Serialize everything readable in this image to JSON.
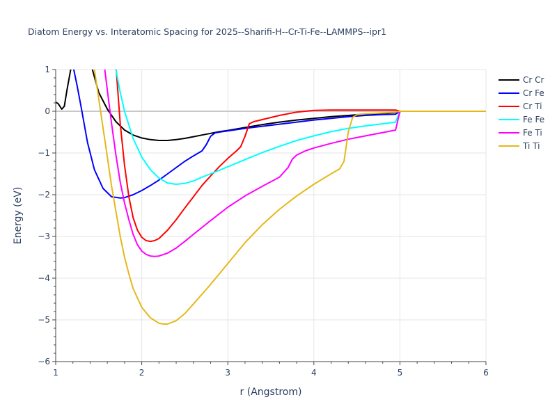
{
  "chart_data": {
    "type": "line",
    "title": "Diatom Energy vs. Interatomic Spacing for 2025--Sharifi-H--Cr-Ti-Fe--LAMMPS--ipr1",
    "xlabel": "r (Angstrom)",
    "ylabel": "Energy (eV)",
    "xlim": [
      1,
      6
    ],
    "ylim": [
      -6,
      1
    ],
    "xticks": [
      1,
      2,
      3,
      4,
      5,
      6
    ],
    "yticks": [
      1,
      0,
      -1,
      -2,
      -3,
      -4,
      -5,
      -6
    ],
    "xtick_labels": [
      "1",
      "2",
      "3",
      "4",
      "5",
      "6"
    ],
    "ytick_labels": [
      "1",
      "0",
      "−1",
      "−2",
      "−3",
      "−4",
      "−5",
      "−6"
    ],
    "grid": true,
    "legend_position": "right",
    "series": [
      {
        "name": "Cr Cr",
        "color": "#000000",
        "x": [
          1.0,
          1.03,
          1.07,
          1.1,
          1.13,
          1.17,
          1.2,
          1.3,
          1.4,
          1.5,
          1.6,
          1.7,
          1.8,
          1.9,
          2.0,
          2.1,
          2.2,
          2.3,
          2.4,
          2.5,
          2.6,
          2.7,
          2.8,
          2.9,
          3.0,
          3.2,
          3.4,
          3.6,
          3.8,
          4.0,
          4.2,
          4.4,
          4.6,
          4.8,
          5.0
        ],
        "y": [
          0.22,
          0.18,
          0.05,
          0.12,
          0.5,
          0.95,
          1.3,
          1.6,
          1.2,
          0.45,
          0.05,
          -0.25,
          -0.45,
          -0.57,
          -0.64,
          -0.68,
          -0.7,
          -0.7,
          -0.68,
          -0.65,
          -0.61,
          -0.57,
          -0.53,
          -0.49,
          -0.46,
          -0.39,
          -0.32,
          -0.26,
          -0.21,
          -0.17,
          -0.13,
          -0.1,
          -0.07,
          -0.05,
          -0.02
        ]
      },
      {
        "name": "Cr Fe",
        "color": "#0000ff",
        "x": [
          1.2,
          1.25,
          1.3,
          1.37,
          1.45,
          1.55,
          1.65,
          1.75,
          1.8,
          1.9,
          2.0,
          2.1,
          2.2,
          2.3,
          2.4,
          2.5,
          2.6,
          2.7,
          2.75,
          2.8,
          2.85,
          2.9,
          3.0,
          3.2,
          3.4,
          3.6,
          3.8,
          4.0,
          4.2,
          4.4,
          4.6,
          4.8,
          4.95,
          5.0
        ],
        "y": [
          1.1,
          0.6,
          0.05,
          -0.75,
          -1.4,
          -1.85,
          -2.05,
          -2.08,
          -2.07,
          -2.0,
          -1.9,
          -1.78,
          -1.65,
          -1.5,
          -1.35,
          -1.2,
          -1.07,
          -0.95,
          -0.8,
          -0.6,
          -0.52,
          -0.5,
          -0.47,
          -0.41,
          -0.36,
          -0.31,
          -0.26,
          -0.21,
          -0.17,
          -0.13,
          -0.1,
          -0.08,
          -0.07,
          0.0
        ]
      },
      {
        "name": "Cr Ti",
        "color": "#ff0000",
        "x": [
          1.7,
          1.75,
          1.8,
          1.85,
          1.9,
          1.95,
          2.0,
          2.05,
          2.1,
          2.15,
          2.2,
          2.3,
          2.4,
          2.5,
          2.6,
          2.7,
          2.8,
          2.9,
          3.0,
          3.1,
          3.15,
          3.2,
          3.25,
          3.3,
          3.4,
          3.5,
          3.6,
          3.8,
          4.0,
          4.2,
          4.4,
          4.6,
          4.8,
          4.95,
          5.0
        ],
        "y": [
          1.1,
          -0.3,
          -1.3,
          -2.05,
          -2.55,
          -2.85,
          -3.02,
          -3.1,
          -3.12,
          -3.1,
          -3.05,
          -2.85,
          -2.6,
          -2.32,
          -2.05,
          -1.78,
          -1.55,
          -1.33,
          -1.13,
          -0.95,
          -0.85,
          -0.6,
          -0.3,
          -0.25,
          -0.2,
          -0.15,
          -0.1,
          -0.02,
          0.02,
          0.03,
          0.03,
          0.03,
          0.03,
          0.03,
          0.0
        ]
      },
      {
        "name": "Fe Fe",
        "color": "#00ffff",
        "x": [
          1.7,
          1.75,
          1.8,
          1.9,
          2.0,
          2.1,
          2.2,
          2.3,
          2.4,
          2.5,
          2.6,
          2.7,
          2.8,
          3.0,
          3.2,
          3.4,
          3.6,
          3.8,
          4.0,
          4.2,
          4.4,
          4.6,
          4.8,
          4.95,
          5.0
        ],
        "y": [
          1.0,
          0.45,
          0.0,
          -0.65,
          -1.1,
          -1.4,
          -1.6,
          -1.72,
          -1.75,
          -1.73,
          -1.67,
          -1.58,
          -1.5,
          -1.33,
          -1.16,
          -0.99,
          -0.84,
          -0.7,
          -0.59,
          -0.49,
          -0.41,
          -0.35,
          -0.3,
          -0.26,
          0.0
        ]
      },
      {
        "name": "Fe Ti",
        "color": "#ff00ff",
        "x": [
          1.57,
          1.6,
          1.65,
          1.7,
          1.75,
          1.8,
          1.85,
          1.9,
          1.95,
          2.0,
          2.05,
          2.1,
          2.15,
          2.2,
          2.3,
          2.4,
          2.5,
          2.6,
          2.8,
          3.0,
          3.2,
          3.4,
          3.6,
          3.7,
          3.75,
          3.8,
          3.9,
          4.0,
          4.2,
          4.4,
          4.6,
          4.8,
          4.95,
          5.0
        ],
        "y": [
          1.0,
          0.5,
          -0.3,
          -1.05,
          -1.7,
          -2.2,
          -2.6,
          -2.95,
          -3.2,
          -3.35,
          -3.43,
          -3.47,
          -3.48,
          -3.47,
          -3.4,
          -3.28,
          -3.12,
          -2.95,
          -2.62,
          -2.3,
          -2.03,
          -1.8,
          -1.58,
          -1.35,
          -1.15,
          -1.05,
          -0.95,
          -0.88,
          -0.77,
          -0.67,
          -0.59,
          -0.51,
          -0.45,
          0.0
        ]
      },
      {
        "name": "Ti Ti",
        "color": "#e5b81a",
        "x": [
          1.45,
          1.5,
          1.55,
          1.6,
          1.65,
          1.7,
          1.75,
          1.8,
          1.85,
          1.9,
          2.0,
          2.1,
          2.2,
          2.25,
          2.3,
          2.4,
          2.5,
          2.6,
          2.8,
          3.0,
          3.2,
          3.4,
          3.6,
          3.8,
          4.0,
          4.2,
          4.3,
          4.35,
          4.4,
          4.45,
          4.5,
          4.6,
          4.8,
          4.95,
          5.0,
          5.4,
          6.0
        ],
        "y": [
          1.0,
          0.3,
          -0.4,
          -1.1,
          -1.8,
          -2.4,
          -3.0,
          -3.5,
          -3.9,
          -4.25,
          -4.7,
          -4.95,
          -5.08,
          -5.1,
          -5.1,
          -5.02,
          -4.85,
          -4.62,
          -4.15,
          -3.65,
          -3.15,
          -2.72,
          -2.35,
          -2.03,
          -1.75,
          -1.5,
          -1.38,
          -1.2,
          -0.5,
          -0.15,
          -0.08,
          -0.06,
          -0.04,
          -0.02,
          0.0,
          0.0,
          0.0
        ]
      }
    ]
  }
}
